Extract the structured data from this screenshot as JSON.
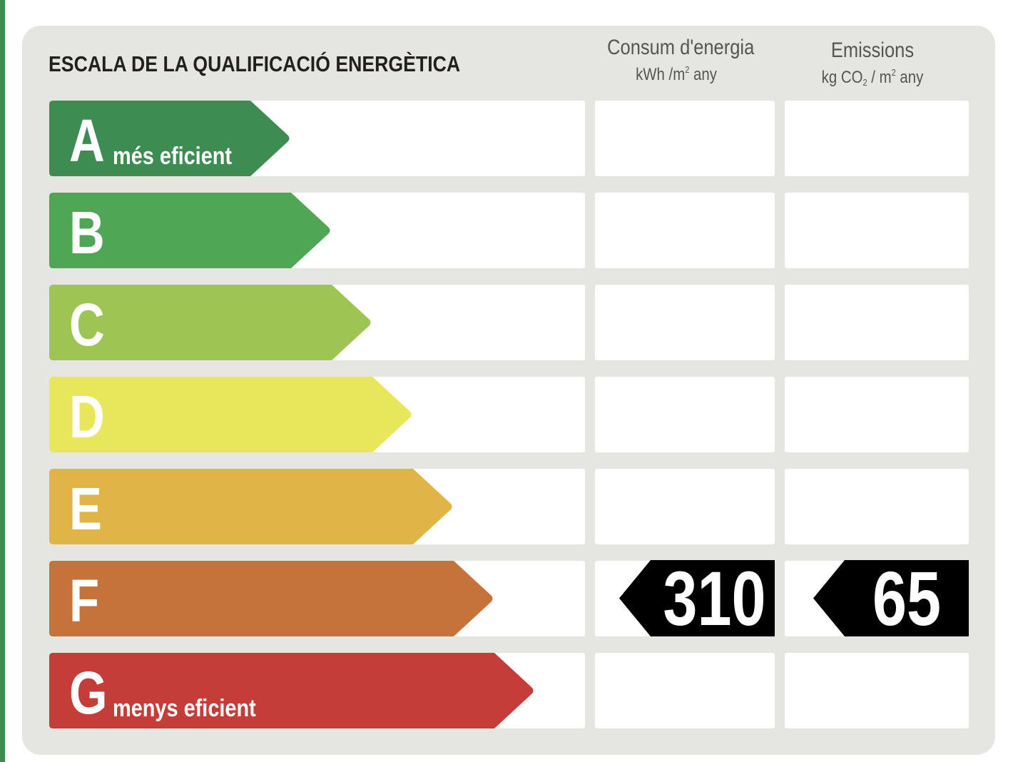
{
  "title": "ESCALA DE LA QUALIFICACIÓ ENERGÈTICA",
  "columns": {
    "energy": {
      "label": "Consum d'energia",
      "unit_pre": "kWh /m",
      "unit_sup": "2",
      "unit_post": " any"
    },
    "emissions": {
      "label": "Emissions",
      "unit_pre": "kg CO",
      "unit_sub": "2",
      "unit_mid": " / m",
      "unit_sup": "2",
      "unit_post": " any"
    }
  },
  "bands": [
    {
      "letter": "A",
      "caption": "més eficient",
      "color": "#3d8c52"
    },
    {
      "letter": "B",
      "caption": "",
      "color": "#4fa654"
    },
    {
      "letter": "C",
      "caption": "",
      "color": "#9ec554"
    },
    {
      "letter": "D",
      "caption": "",
      "color": "#e8e65a"
    },
    {
      "letter": "E",
      "caption": "",
      "color": "#e1b447"
    },
    {
      "letter": "F",
      "caption": "",
      "color": "#c6733b"
    },
    {
      "letter": "G",
      "caption": "menys eficient",
      "color": "#c43d38"
    }
  ],
  "rating": {
    "band": "F",
    "energy_value": "310",
    "emissions_value": "65"
  },
  "colors": {
    "panel": "#e5e5e1",
    "marker": "#000000",
    "stripe": "#3d8c52"
  }
}
